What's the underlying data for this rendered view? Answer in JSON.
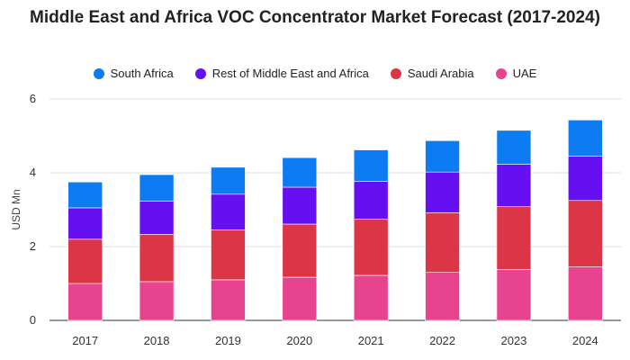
{
  "chart_data": {
    "type": "bar",
    "stacked": true,
    "title": "Middle East and Africa VOC Concentrator Market Forecast (2017-2024)",
    "ylabel": "USD Mn",
    "xlabel": "",
    "categories": [
      "2017",
      "2018",
      "2019",
      "2020",
      "2021",
      "2022",
      "2023",
      "2024"
    ],
    "ylim": [
      0,
      6
    ],
    "yticks": [
      0,
      2,
      4,
      6
    ],
    "grid": true,
    "legend_position": "top",
    "series": [
      {
        "name": "UAE",
        "color": "#e8438e",
        "values": [
          1.0,
          1.05,
          1.1,
          1.17,
          1.22,
          1.3,
          1.38,
          1.45
        ]
      },
      {
        "name": "Saudi Arabia",
        "color": "#dc3545",
        "values": [
          1.2,
          1.28,
          1.35,
          1.44,
          1.52,
          1.62,
          1.7,
          1.8
        ]
      },
      {
        "name": "Rest of Middle East and Africa",
        "color": "#6610f2",
        "values": [
          0.85,
          0.9,
          0.97,
          1.0,
          1.03,
          1.1,
          1.15,
          1.2
        ]
      },
      {
        "name": "South Africa",
        "color": "#0d7cf2",
        "values": [
          0.7,
          0.72,
          0.73,
          0.8,
          0.85,
          0.85,
          0.92,
          0.98
        ]
      }
    ],
    "legend_order": [
      "South Africa",
      "Rest of Middle East and Africa",
      "Saudi Arabia",
      "UAE"
    ]
  }
}
